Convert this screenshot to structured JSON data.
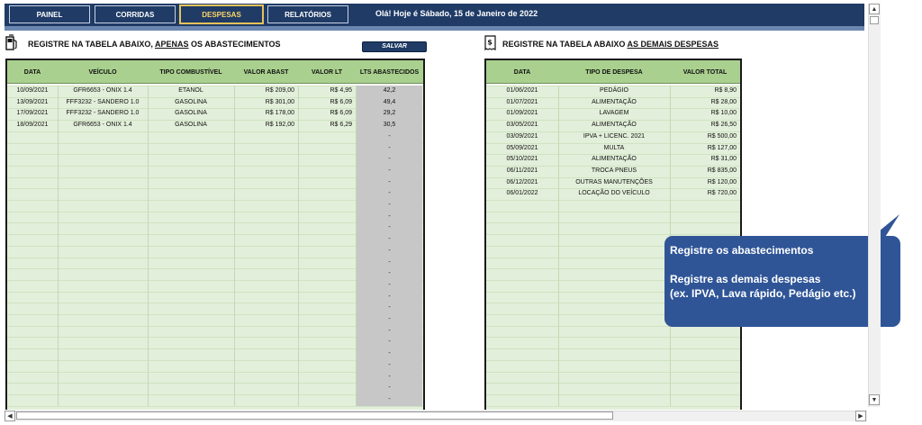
{
  "nav": {
    "tabs": [
      {
        "label": "PAINEL",
        "active": false
      },
      {
        "label": "CORRIDAS",
        "active": false
      },
      {
        "label": "DESPESAS",
        "active": true
      },
      {
        "label": "RELATÓRIOS",
        "active": false
      }
    ],
    "greeting": "Olá! Hoje é Sábado, 15 de Janeiro de 2022"
  },
  "fuel": {
    "heading_pre": "REGISTRE NA TABELA ABAIXO, ",
    "heading_em": "APENAS",
    "heading_post": " OS ABASTECIMENTOS",
    "save_label": "SALVAR",
    "columns": [
      "DATA",
      "VEÍCULO",
      "TIPO COMBUSTÍVEL",
      "VALOR ABAST",
      "VALOR LT",
      "LTS ABASTECIDOS"
    ],
    "rows": [
      [
        "10/09/2021",
        "GFR6653 - ONIX 1.4",
        "ETANOL",
        "R$ 209,00",
        "R$ 4,95",
        "42,2"
      ],
      [
        "13/09/2021",
        "FFF3232 - SANDERO 1.0",
        "GASOLINA",
        "R$ 301,00",
        "R$ 6,09",
        "49,4"
      ],
      [
        "17/09/2021",
        "FFF3232 - SANDERO 1.0",
        "GASOLINA",
        "R$ 178,00",
        "R$ 6,09",
        "29,2"
      ],
      [
        "18/09/2021",
        "GFR6653 - ONIX 1.4",
        "GASOLINA",
        "R$ 192,00",
        "R$ 6,29",
        "30,5"
      ]
    ],
    "empty_lts": "-"
  },
  "expenses": {
    "heading_pre": "REGISTRE NA TABELA ABAIXO ",
    "heading_em": "AS DEMAIS DESPESAS",
    "columns": [
      "DATA",
      "TIPO DE DESPESA",
      "VALOR TOTAL"
    ],
    "rows": [
      [
        "01/06/2021",
        "PEDÁGIO",
        "R$ 8,90"
      ],
      [
        "01/07/2021",
        "ALIMENTAÇÃO",
        "R$ 28,00"
      ],
      [
        "01/09/2021",
        "LAVAGEM",
        "R$ 10,00"
      ],
      [
        "03/05/2021",
        "ALIMENTAÇÃO",
        "R$ 26,50"
      ],
      [
        "03/09/2021",
        "IPVA + LICENC. 2021",
        "R$ 500,00"
      ],
      [
        "05/09/2021",
        "MULTA",
        "R$ 127,00"
      ],
      [
        "05/10/2021",
        "ALIMENTAÇÃO",
        "R$ 31,00"
      ],
      [
        "06/11/2021",
        "TROCA PNEUS",
        "R$ 835,00"
      ],
      [
        "06/12/2021",
        "OUTRAS MANUTENÇÕES",
        "R$ 120,00"
      ],
      [
        "06/01/2022",
        "LOCAÇÃO DO VEÍCULO",
        "R$ 720,00"
      ]
    ]
  },
  "callout": {
    "line1": "Registre os abastecimentos",
    "line2": "Registre as demais despesas",
    "line3": "(ex. IPVA, Lava rápido, Pedágio etc.)"
  },
  "colors": {
    "navy": "#1f3b66",
    "header_green": "#a9d08e",
    "row_green": "#e2efda",
    "callout_blue": "#2f5597",
    "active_tab": "#e7c35a"
  }
}
